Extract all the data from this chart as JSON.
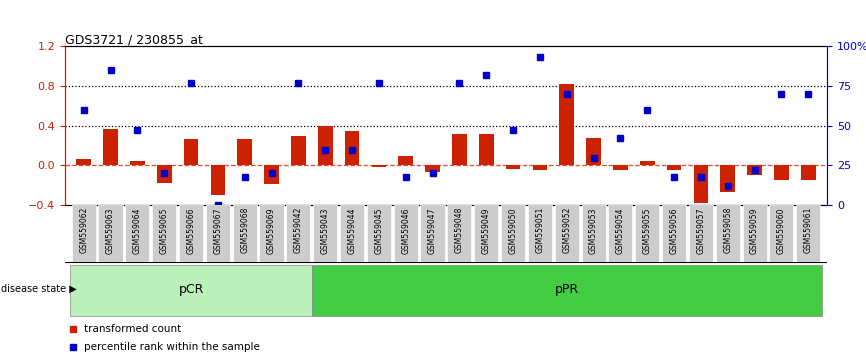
{
  "title": "GDS3721 / 230855_at",
  "samples": [
    "GSM559062",
    "GSM559063",
    "GSM559064",
    "GSM559065",
    "GSM559066",
    "GSM559067",
    "GSM559068",
    "GSM559069",
    "GSM559042",
    "GSM559043",
    "GSM559044",
    "GSM559045",
    "GSM559046",
    "GSM559047",
    "GSM559048",
    "GSM559049",
    "GSM559050",
    "GSM559051",
    "GSM559052",
    "GSM559053",
    "GSM559054",
    "GSM559055",
    "GSM559056",
    "GSM559057",
    "GSM559058",
    "GSM559059",
    "GSM559060",
    "GSM559061"
  ],
  "bar_values": [
    0.07,
    0.37,
    0.05,
    -0.18,
    0.27,
    -0.3,
    0.27,
    -0.19,
    0.3,
    0.4,
    0.35,
    -0.02,
    0.1,
    -0.07,
    0.32,
    0.32,
    -0.04,
    -0.05,
    0.82,
    0.28,
    -0.05,
    0.05,
    -0.05,
    -0.38,
    -0.27,
    -0.1,
    -0.15,
    -0.15
  ],
  "dot_values": [
    0.6,
    0.85,
    0.47,
    0.2,
    0.77,
    0.0,
    0.18,
    0.2,
    0.77,
    0.35,
    0.35,
    0.77,
    0.18,
    0.2,
    0.77,
    0.82,
    0.47,
    0.93,
    0.7,
    0.3,
    0.42,
    0.6,
    0.18,
    0.18,
    0.12,
    0.22,
    0.7,
    0.7
  ],
  "bar_color": "#CC2200",
  "dot_color": "#0000CC",
  "ylim_left": [
    -0.4,
    1.2
  ],
  "ylim_right": [
    0,
    100
  ],
  "yticks_left": [
    -0.4,
    0.0,
    0.4,
    0.8,
    1.2
  ],
  "yticks_right": [
    0,
    25,
    50,
    75,
    100
  ],
  "yticklabels_right": [
    "0",
    "25",
    "50",
    "75",
    "100%"
  ],
  "hlines": [
    0.4,
    0.8
  ],
  "groups": [
    {
      "label": "pCR",
      "start": 0,
      "end": 9,
      "color": "#bbf0bb"
    },
    {
      "label": "pPR",
      "start": 9,
      "end": 28,
      "color": "#44cc44"
    }
  ],
  "legend": [
    "transformed count",
    "percentile rank within the sample"
  ],
  "disease_state_label": "disease state"
}
